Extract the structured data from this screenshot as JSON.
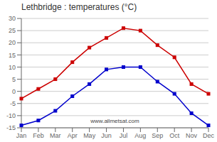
{
  "chart_data": {
    "type": "line",
    "title": "Lethbridge : temperatures (°C)",
    "categories": [
      "Jan",
      "Feb",
      "Mar",
      "Apr",
      "May",
      "Jun",
      "Jul",
      "Aug",
      "Sep",
      "Oct",
      "Nov",
      "Dec"
    ],
    "series": [
      {
        "color": "#cc0000",
        "marker": "square",
        "values": [
          -3,
          1,
          5,
          12,
          18,
          22,
          26,
          25,
          19,
          14,
          3,
          -1
        ]
      },
      {
        "color": "#0000cc",
        "marker": "square",
        "values": [
          -14,
          -12,
          -8,
          -2,
          3,
          9,
          10,
          10,
          4,
          -1,
          -9,
          -14
        ]
      }
    ],
    "ylim": [
      -15,
      30
    ],
    "yticks": [
      -15,
      -10,
      -5,
      0,
      5,
      10,
      15,
      20,
      25,
      30
    ],
    "grid": true,
    "annotations": [
      "www.allmetsat.com"
    ]
  }
}
